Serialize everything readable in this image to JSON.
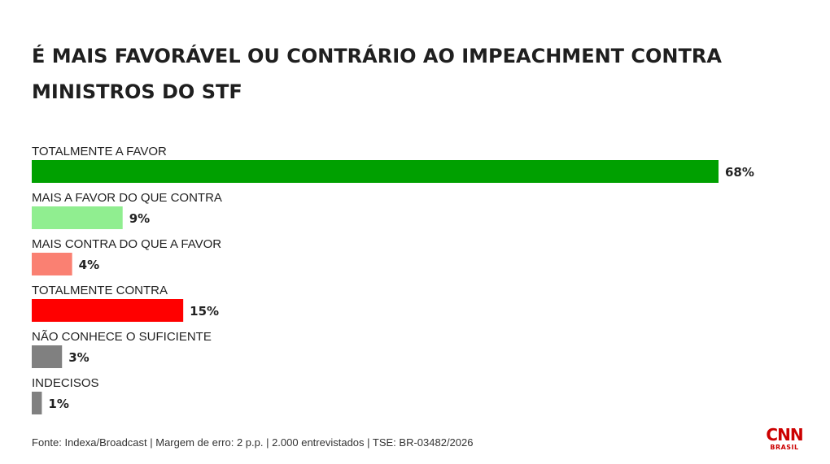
{
  "chart_data": {
    "type": "bar",
    "orientation": "horizontal",
    "title": "É MAIS FAVORÁVEL OU CONTRÁRIO AO IMPEACHMENT CONTRA MINISTROS DO STF",
    "categories": [
      "TOTALMENTE A FAVOR",
      "MAIS A FAVOR DO QUE CONTRA",
      "MAIS CONTRA DO QUE A FAVOR",
      "TOTALMENTE CONTRA",
      "NÃO CONHECE O SUFICIENTE",
      "INDECISOS"
    ],
    "values": [
      68,
      9,
      4,
      15,
      3,
      1
    ],
    "value_labels": [
      "68%",
      "9%",
      "4%",
      "15%",
      "3%",
      "1%"
    ],
    "colors": [
      "#00a000",
      "#90ee90",
      "#fa8072",
      "#ff0000",
      "#808080",
      "#808080"
    ],
    "unit": "%",
    "grid": false,
    "legend": "none"
  },
  "footer": {
    "source": "Fonte: Indexa/Broadcast | Margem de erro: 2 p.p. | 2.000 entrevistados | TSE: BR-03482/2026"
  },
  "logo": {
    "main": "CNN",
    "sub": "BRASIL",
    "color": "#cc0000"
  }
}
